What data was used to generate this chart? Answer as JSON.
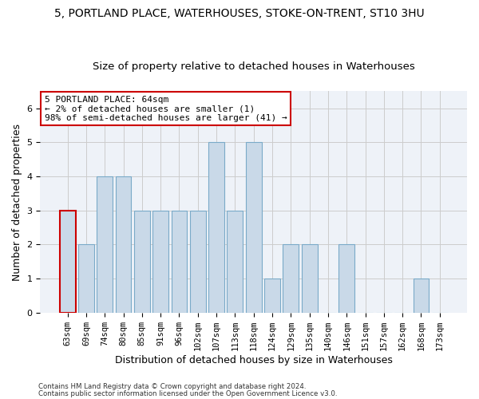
{
  "title": "5, PORTLAND PLACE, WATERHOUSES, STOKE-ON-TRENT, ST10 3HU",
  "subtitle": "Size of property relative to detached houses in Waterhouses",
  "xlabel": "Distribution of detached houses by size in Waterhouses",
  "ylabel": "Number of detached properties",
  "categories": [
    "63sqm",
    "69sqm",
    "74sqm",
    "80sqm",
    "85sqm",
    "91sqm",
    "96sqm",
    "102sqm",
    "107sqm",
    "113sqm",
    "118sqm",
    "124sqm",
    "129sqm",
    "135sqm",
    "140sqm",
    "146sqm",
    "151sqm",
    "157sqm",
    "162sqm",
    "168sqm",
    "173sqm"
  ],
  "values": [
    3,
    2,
    4,
    4,
    3,
    3,
    3,
    3,
    5,
    3,
    5,
    1,
    2,
    2,
    0,
    2,
    0,
    0,
    0,
    1,
    0
  ],
  "bar_color": "#c9d9e8",
  "bar_edge_color": "#7aaac8",
  "highlight_index": 0,
  "highlight_bar_edge_color": "#cc0000",
  "annotation_text": "5 PORTLAND PLACE: 64sqm\n← 2% of detached houses are smaller (1)\n98% of semi-detached houses are larger (41) →",
  "annotation_box_color": "#ffffff",
  "annotation_box_edge_color": "#cc0000",
  "ylim": [
    0,
    6.5
  ],
  "yticks": [
    0,
    1,
    2,
    3,
    4,
    5,
    6
  ],
  "grid_color": "#cccccc",
  "bg_color": "#eef2f8",
  "footer_line1": "Contains HM Land Registry data © Crown copyright and database right 2024.",
  "footer_line2": "Contains public sector information licensed under the Open Government Licence v3.0.",
  "title_fontsize": 10,
  "subtitle_fontsize": 9.5,
  "tick_fontsize": 7.5,
  "label_fontsize": 9,
  "annotation_fontsize": 8
}
